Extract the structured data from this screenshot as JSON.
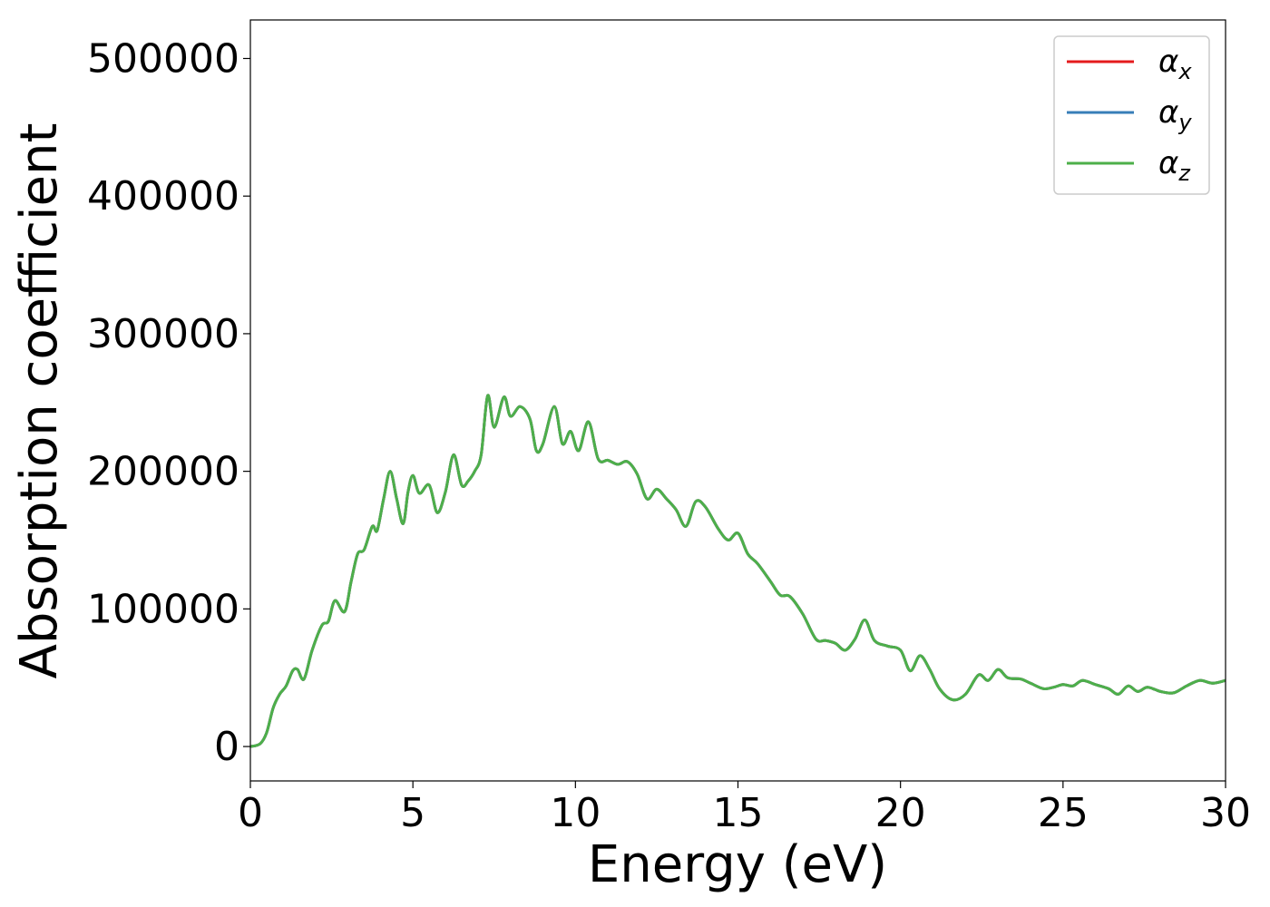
{
  "chart_data": {
    "type": "line",
    "xlabel": "Energy (eV)",
    "ylabel": "Absorption coefficient",
    "xlim": [
      0,
      30
    ],
    "ylim": [
      -25000,
      528000
    ],
    "x_ticks": [
      0,
      5,
      10,
      15,
      20,
      25,
      30
    ],
    "x_tick_labels": [
      "0",
      "5",
      "10",
      "15",
      "20",
      "25",
      "30"
    ],
    "y_ticks": [
      0,
      100000,
      200000,
      300000,
      400000,
      500000
    ],
    "y_tick_labels": [
      "0",
      "100000",
      "200000",
      "300000",
      "400000",
      "500000"
    ],
    "grid": false,
    "legend": "top-right",
    "colors": {
      "alpha_x": "#e41a1c",
      "alpha_y": "#377eb8",
      "alpha_z": "#4daf4a"
    },
    "series": [
      {
        "name": "α_x",
        "base": "α",
        "sub": "x",
        "color": "#e41a1c",
        "x": [
          0,
          0.3,
          0.5,
          0.7,
          0.9,
          1.1,
          1.3,
          1.45,
          1.65,
          1.9,
          2.2,
          2.4,
          2.6,
          2.9,
          3.1,
          3.3,
          3.5,
          3.75,
          3.9,
          4.1,
          4.3,
          4.5,
          4.7,
          4.85,
          5.0,
          5.2,
          5.5,
          5.75,
          6.0,
          6.25,
          6.5,
          6.7,
          6.9,
          7.1,
          7.3,
          7.5,
          7.8,
          8.0,
          8.3,
          8.6,
          8.8,
          9.0,
          9.35,
          9.6,
          9.85,
          10.1,
          10.4,
          10.7,
          11.0,
          11.3,
          11.6,
          11.9,
          12.2,
          12.5,
          12.8,
          13.1,
          13.4,
          13.7,
          14.0,
          14.4,
          14.7,
          15.0,
          15.3,
          15.6,
          16.0,
          16.3,
          16.6,
          17.0,
          17.4,
          17.7,
          18.0,
          18.3,
          18.6,
          18.9,
          19.2,
          19.6,
          20.0,
          20.3,
          20.6,
          20.9,
          21.2,
          21.6,
          22.0,
          22.4,
          22.7,
          23.0,
          23.3,
          23.7,
          24.0,
          24.4,
          24.7,
          25.0,
          25.3,
          25.6,
          26.0,
          26.4,
          26.7,
          27.0,
          27.3,
          27.6,
          28.0,
          28.4,
          28.8,
          29.2,
          29.6,
          30.0
        ],
        "y": [
          0,
          2000,
          10000,
          28000,
          38000,
          44000,
          55000,
          56000,
          49000,
          70000,
          88000,
          91000,
          106000,
          98000,
          120000,
          140000,
          143000,
          160000,
          157000,
          180000,
          200000,
          180000,
          162000,
          185000,
          197000,
          184000,
          190000,
          170000,
          185000,
          212000,
          190000,
          193000,
          200000,
          212000,
          255000,
          232000,
          254000,
          240000,
          247000,
          238000,
          215000,
          220000,
          247000,
          220000,
          229000,
          215000,
          236000,
          209000,
          208000,
          205000,
          207000,
          198000,
          180000,
          187000,
          180000,
          172000,
          160000,
          178000,
          174000,
          158000,
          150000,
          155000,
          140000,
          133000,
          120000,
          110000,
          109000,
          96000,
          78000,
          77000,
          75000,
          70000,
          78000,
          92000,
          77000,
          73000,
          70000,
          55000,
          66000,
          56000,
          42000,
          34000,
          38000,
          52000,
          48000,
          56000,
          50000,
          49000,
          46000,
          42000,
          43000,
          45000,
          44000,
          48000,
          45000,
          42000,
          38000,
          44000,
          40000,
          43000,
          40000,
          39000,
          44000,
          48000,
          46000,
          48000
        ]
      },
      {
        "name": "α_y",
        "base": "α",
        "sub": "y",
        "color": "#377eb8",
        "x": [
          0,
          0.3,
          0.5,
          0.7,
          0.9,
          1.1,
          1.3,
          1.45,
          1.65,
          1.9,
          2.2,
          2.4,
          2.6,
          2.9,
          3.1,
          3.3,
          3.5,
          3.75,
          3.9,
          4.1,
          4.3,
          4.5,
          4.7,
          4.85,
          5.0,
          5.2,
          5.5,
          5.75,
          6.0,
          6.25,
          6.5,
          6.7,
          6.9,
          7.1,
          7.3,
          7.5,
          7.8,
          8.0,
          8.3,
          8.6,
          8.8,
          9.0,
          9.35,
          9.6,
          9.85,
          10.1,
          10.4,
          10.7,
          11.0,
          11.3,
          11.6,
          11.9,
          12.2,
          12.5,
          12.8,
          13.1,
          13.4,
          13.7,
          14.0,
          14.4,
          14.7,
          15.0,
          15.3,
          15.6,
          16.0,
          16.3,
          16.6,
          17.0,
          17.4,
          17.7,
          18.0,
          18.3,
          18.6,
          18.9,
          19.2,
          19.6,
          20.0,
          20.3,
          20.6,
          20.9,
          21.2,
          21.6,
          22.0,
          22.4,
          22.7,
          23.0,
          23.3,
          23.7,
          24.0,
          24.4,
          24.7,
          25.0,
          25.3,
          25.6,
          26.0,
          26.4,
          26.7,
          27.0,
          27.3,
          27.6,
          28.0,
          28.4,
          28.8,
          29.2,
          29.6,
          30.0
        ],
        "y": [
          0,
          2000,
          10000,
          28000,
          38000,
          44000,
          55000,
          56000,
          49000,
          70000,
          88000,
          91000,
          106000,
          98000,
          120000,
          140000,
          143000,
          160000,
          157000,
          180000,
          200000,
          180000,
          162000,
          185000,
          197000,
          184000,
          190000,
          170000,
          185000,
          212000,
          190000,
          193000,
          200000,
          212000,
          255000,
          232000,
          254000,
          240000,
          247000,
          238000,
          215000,
          220000,
          247000,
          220000,
          229000,
          215000,
          236000,
          209000,
          208000,
          205000,
          207000,
          198000,
          180000,
          187000,
          180000,
          172000,
          160000,
          178000,
          174000,
          158000,
          150000,
          155000,
          140000,
          133000,
          120000,
          110000,
          109000,
          96000,
          78000,
          77000,
          75000,
          70000,
          78000,
          92000,
          77000,
          73000,
          70000,
          55000,
          66000,
          56000,
          42000,
          34000,
          38000,
          52000,
          48000,
          56000,
          50000,
          49000,
          46000,
          42000,
          43000,
          45000,
          44000,
          48000,
          45000,
          42000,
          38000,
          44000,
          40000,
          43000,
          40000,
          39000,
          44000,
          48000,
          46000,
          48000
        ]
      },
      {
        "name": "α_z",
        "base": "α",
        "sub": "z",
        "color": "#4daf4a",
        "x": [
          0,
          0.3,
          0.5,
          0.7,
          0.9,
          1.1,
          1.3,
          1.45,
          1.65,
          1.9,
          2.2,
          2.4,
          2.6,
          2.9,
          3.1,
          3.3,
          3.5,
          3.75,
          3.9,
          4.1,
          4.3,
          4.5,
          4.7,
          4.85,
          5.0,
          5.2,
          5.5,
          5.75,
          6.0,
          6.25,
          6.5,
          6.7,
          6.9,
          7.1,
          7.3,
          7.5,
          7.8,
          8.0,
          8.3,
          8.6,
          8.8,
          9.0,
          9.35,
          9.6,
          9.85,
          10.1,
          10.4,
          10.7,
          11.0,
          11.3,
          11.6,
          11.9,
          12.2,
          12.5,
          12.8,
          13.1,
          13.4,
          13.7,
          14.0,
          14.4,
          14.7,
          15.0,
          15.3,
          15.6,
          16.0,
          16.3,
          16.6,
          17.0,
          17.4,
          17.7,
          18.0,
          18.3,
          18.6,
          18.9,
          19.2,
          19.6,
          20.0,
          20.3,
          20.6,
          20.9,
          21.2,
          21.6,
          22.0,
          22.4,
          22.7,
          23.0,
          23.3,
          23.7,
          24.0,
          24.4,
          24.7,
          25.0,
          25.3,
          25.6,
          26.0,
          26.4,
          26.7,
          27.0,
          27.3,
          27.6,
          28.0,
          28.4,
          28.8,
          29.2,
          29.6,
          30.0
        ],
        "y": [
          0,
          2000,
          10000,
          28000,
          38000,
          44000,
          55000,
          56000,
          49000,
          70000,
          88000,
          91000,
          106000,
          98000,
          120000,
          140000,
          143000,
          160000,
          157000,
          180000,
          200000,
          180000,
          162000,
          185000,
          197000,
          184000,
          190000,
          170000,
          185000,
          212000,
          190000,
          193000,
          200000,
          212000,
          255000,
          232000,
          254000,
          240000,
          247000,
          238000,
          215000,
          220000,
          247000,
          220000,
          229000,
          215000,
          236000,
          209000,
          208000,
          205000,
          207000,
          198000,
          180000,
          187000,
          180000,
          172000,
          160000,
          178000,
          174000,
          158000,
          150000,
          155000,
          140000,
          133000,
          120000,
          110000,
          109000,
          96000,
          78000,
          77000,
          75000,
          70000,
          78000,
          92000,
          77000,
          73000,
          70000,
          55000,
          66000,
          56000,
          42000,
          34000,
          38000,
          52000,
          48000,
          56000,
          50000,
          49000,
          46000,
          42000,
          43000,
          45000,
          44000,
          48000,
          45000,
          42000,
          38000,
          44000,
          40000,
          43000,
          40000,
          39000,
          44000,
          48000,
          46000,
          48000
        ]
      }
    ]
  }
}
